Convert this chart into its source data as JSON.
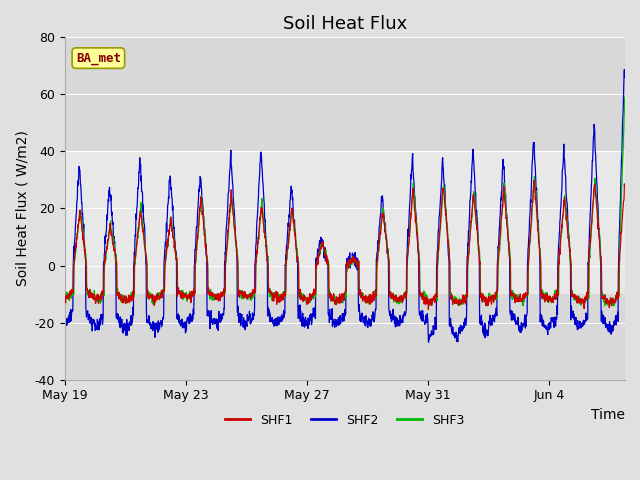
{
  "title": "Soil Heat Flux",
  "ylabel": "Soil Heat Flux ( W/m2)",
  "xlabel": "Time",
  "ylim": [
    -40,
    80
  ],
  "x_ticks_labels": [
    "May 19",
    "May 23",
    "May 27",
    "May 31",
    "Jun 4"
  ],
  "shf1_color": "#cc0000",
  "shf2_color": "#0000cc",
  "shf3_color": "#00bb00",
  "background_color": "#e0e0e0",
  "plot_bg_outer": "#d8d8d8",
  "plot_bg_inner": "#e8e8e8",
  "label_box_face": "#ffff99",
  "label_box_edge": "#999900",
  "label_text": "BA_met",
  "label_text_color": "#880000",
  "legend_labels": [
    "SHF1",
    "SHF2",
    "SHF3"
  ],
  "title_fontsize": 13,
  "axis_label_fontsize": 10,
  "tick_fontsize": 9,
  "n_days": 18.5,
  "dt": 0.01
}
